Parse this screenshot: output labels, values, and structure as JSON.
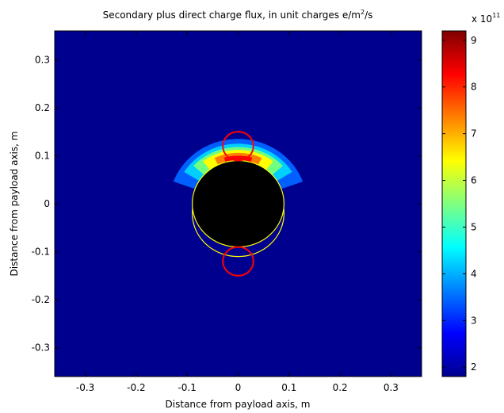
{
  "chart_data": {
    "type": "heatmap",
    "title": "Secondary plus direct charge flux,   in unit charges e/m²/s",
    "title_parts": {
      "main": "Secondary plus direct charge flux,   in unit charges e/m",
      "superscript": "2",
      "suffix": "/s"
    },
    "xlabel": "Distance  from payload axis, m",
    "ylabel": "Distance  from payload axis, m",
    "xlim": [
      -0.36,
      0.36
    ],
    "ylim": [
      -0.36,
      0.36
    ],
    "xticks": [
      -0.3,
      -0.2,
      -0.1,
      0,
      0.1,
      0.2,
      0.3
    ],
    "xtick_labels": [
      "-0.3",
      "-0.2",
      "-0.1",
      "0",
      "0.1",
      "0.2",
      "0.3"
    ],
    "yticks": [
      0.3,
      0.2,
      0.1,
      0,
      -0.1,
      -0.2,
      -0.3
    ],
    "ytick_labels": [
      "0.3",
      "0.2",
      "0.1",
      "0",
      "-0.1",
      "-0.2",
      "-0.3"
    ],
    "grid": false,
    "colormap": "jet",
    "background_color": "#00008f",
    "colorbar": {
      "min": 1.8,
      "max": 9.2,
      "ticks": [
        2,
        3,
        4,
        5,
        6,
        7,
        8,
        9
      ],
      "tick_labels": [
        "2",
        "3",
        "4",
        "5",
        "6",
        "7",
        "8",
        "9"
      ],
      "exponent_base": "x 10",
      "exponent_power": "11"
    },
    "payload_body": {
      "center": [
        0,
        0
      ],
      "radius": 0.09,
      "color": "#000000",
      "outline_color": "#ffff00"
    },
    "payload_outline_shifted": {
      "center": [
        0,
        -0.02
      ],
      "radius": 0.09,
      "color": "#ffff00"
    },
    "sensor_circles": [
      {
        "center": [
          0,
          0.12
        ],
        "radius": 0.03,
        "color": "#ff0000"
      },
      {
        "center": [
          0,
          -0.12
        ],
        "radius": 0.03,
        "color": "#ff0000"
      }
    ],
    "flux_contours": [
      {
        "level": 3.0,
        "color": "#0060ff",
        "inner_radius": 0.09,
        "outer_radius": 0.135,
        "angle_span_deg": 70
      },
      {
        "level": 4.5,
        "color": "#00d0ff",
        "inner_radius": 0.09,
        "outer_radius": 0.125,
        "angle_span_deg": 58
      },
      {
        "level": 6.0,
        "color": "#70ff80",
        "inner_radius": 0.09,
        "outer_radius": 0.118,
        "angle_span_deg": 48
      },
      {
        "level": 6.8,
        "color": "#ffff00",
        "inner_radius": 0.09,
        "outer_radius": 0.112,
        "angle_span_deg": 38
      },
      {
        "level": 7.8,
        "color": "#ff8000",
        "inner_radius": 0.09,
        "outer_radius": 0.106,
        "angle_span_deg": 26
      },
      {
        "level": 8.6,
        "color": "#ff0000",
        "inner_radius": 0.09,
        "outer_radius": 0.1,
        "angle_span_deg": 16
      }
    ]
  }
}
